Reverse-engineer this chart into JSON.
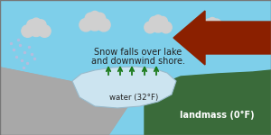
{
  "sky_color": "#7ecfea",
  "land_left_color": "#a8a8a8",
  "land_left_color2": "#888888",
  "land_right_color": "#3a6b3a",
  "water_color": "#cce4f0",
  "water_outline_color": "#99bbcc",
  "cloud_color": "#d0d0d0",
  "arrow_color": "#8b2000",
  "up_arrow_color": "#1a7a1a",
  "text_color": "#222222",
  "text_water": "water (32°F)",
  "text_landmass": "landmass (0°F)",
  "text_snow_line1": "Snow falls over lake",
  "text_snow_line2": "and downwind shore.",
  "snow_dot_color": "#bbbbdd",
  "fig_width": 3.0,
  "fig_height": 1.5,
  "dpi": 100
}
